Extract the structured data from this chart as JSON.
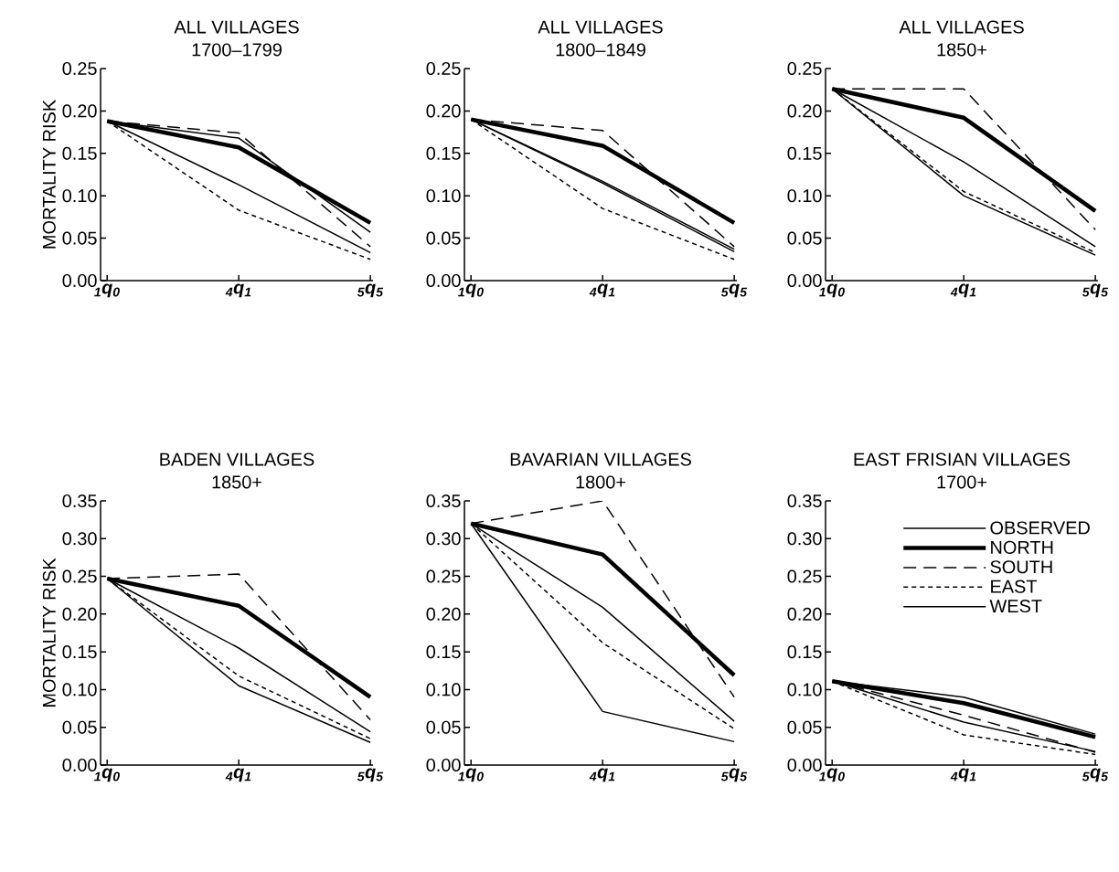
{
  "chart_data": [
    {
      "type": "line",
      "title": "ALL VILLAGES",
      "subtitle": "1700–1799",
      "ylabel": "MORTALITY RISK",
      "categories": [
        "$_{1}$q$_{0}$",
        "$_{4}$q$_{1}$",
        "$_{5}$q$_{5}$"
      ],
      "ylim": [
        0,
        0.25
      ],
      "yticks": [
        {
          "value": 0,
          "label": "0.00"
        },
        {
          "value": 0.05,
          "label": "0.05"
        },
        {
          "value": 0.1,
          "label": "0.10"
        },
        {
          "value": 0.15,
          "label": "0.15"
        },
        {
          "value": 0.2,
          "label": "0.20"
        },
        {
          "value": 0.25,
          "label": "0.25"
        }
      ],
      "series": [
        {
          "color": "#000000",
          "line_style": "solid",
          "values": [
            0.188,
            0.168,
            0.057
          ]
        },
        {
          "color": "#000000",
          "line_style": "solid",
          "values": [
            0.188,
            0.157,
            0.068
          ]
        },
        {
          "color": "#000000",
          "line_style": "dashed",
          "values": [
            0.188,
            0.174,
            0.04
          ]
        },
        {
          "color": "#000000",
          "line_style": "dotted",
          "values": [
            0.188,
            0.083,
            0.025
          ]
        },
        {
          "color": "#000000",
          "line_style": "solid",
          "values": [
            0.188,
            0.113,
            0.033
          ]
        }
      ]
    },
    {
      "type": "line",
      "title": "ALL VILLAGES",
      "subtitle": "1800–1849",
      "categories": [
        "$_{1}$q$_{0}$",
        "$_{4}$q$_{1}$",
        "$_{5}$q$_{5}$"
      ],
      "ylim": [
        0,
        0.25
      ],
      "yticks": [
        {
          "value": 0,
          "label": "0.00"
        },
        {
          "value": 0.05,
          "label": "0.05"
        },
        {
          "value": 0.1,
          "label": "0.10"
        },
        {
          "value": 0.15,
          "label": "0.15"
        },
        {
          "value": 0.2,
          "label": "0.20"
        },
        {
          "value": 0.25,
          "label": "0.25"
        }
      ],
      "series": [
        {
          "color": "#000000",
          "line_style": "solid",
          "values": [
            0.19,
            0.115,
            0.034
          ]
        },
        {
          "color": "#000000",
          "line_style": "solid",
          "values": [
            0.19,
            0.159,
            0.068
          ]
        },
        {
          "color": "#000000",
          "line_style": "dashed",
          "values": [
            0.19,
            0.177,
            0.04
          ]
        },
        {
          "color": "#000000",
          "line_style": "dotted",
          "values": [
            0.19,
            0.085,
            0.025
          ]
        },
        {
          "color": "#000000",
          "line_style": "solid",
          "values": [
            0.19,
            0.117,
            0.037
          ]
        }
      ]
    },
    {
      "type": "line",
      "title": "ALL VILLAGES",
      "subtitle": "1850+",
      "categories": [
        "$_{1}$q$_{0}$",
        "$_{4}$q$_{1}$",
        "$_{5}$q$_{5}$"
      ],
      "ylim": [
        0,
        0.25
      ],
      "yticks": [
        {
          "value": 0,
          "label": "0.00"
        },
        {
          "value": 0.05,
          "label": "0.05"
        },
        {
          "value": 0.1,
          "label": "0.10"
        },
        {
          "value": 0.15,
          "label": "0.15"
        },
        {
          "value": 0.2,
          "label": "0.20"
        },
        {
          "value": 0.25,
          "label": "0.25"
        }
      ],
      "series": [
        {
          "color": "#000000",
          "line_style": "solid",
          "values": [
            0.226,
            0.1,
            0.03
          ]
        },
        {
          "color": "#000000",
          "line_style": "solid",
          "values": [
            0.226,
            0.192,
            0.082
          ]
        },
        {
          "color": "#000000",
          "line_style": "dashed",
          "values": [
            0.226,
            0.226,
            0.06
          ]
        },
        {
          "color": "#000000",
          "line_style": "dotted",
          "values": [
            0.226,
            0.105,
            0.033
          ]
        },
        {
          "color": "#000000",
          "line_style": "solid",
          "values": [
            0.226,
            0.14,
            0.04
          ]
        }
      ]
    },
    {
      "type": "line",
      "title": "BADEN VILLAGES",
      "subtitle": "1850+",
      "ylabel": "MORTALITY RISK",
      "categories": [
        "$_{1}$q$_{0}$",
        "$_{4}$q$_{1}$",
        "$_{5}$q$_{5}$"
      ],
      "ylim": [
        0,
        0.35
      ],
      "yticks": [
        {
          "value": 0,
          "label": "0.00"
        },
        {
          "value": 0.05,
          "label": "0.05"
        },
        {
          "value": 0.1,
          "label": "0.10"
        },
        {
          "value": 0.15,
          "label": "0.15"
        },
        {
          "value": 0.2,
          "label": "0.20"
        },
        {
          "value": 0.25,
          "label": "0.25"
        },
        {
          "value": 0.3,
          "label": "0.30"
        },
        {
          "value": 0.35,
          "label": "0.35"
        }
      ],
      "series": [
        {
          "color": "#000000",
          "line_style": "solid",
          "values": [
            0.247,
            0.105,
            0.03
          ]
        },
        {
          "color": "#000000",
          "line_style": "solid",
          "values": [
            0.247,
            0.211,
            0.09
          ]
        },
        {
          "color": "#000000",
          "line_style": "dashed",
          "values": [
            0.247,
            0.253,
            0.06
          ]
        },
        {
          "color": "#000000",
          "line_style": "dotted",
          "values": [
            0.247,
            0.118,
            0.035
          ]
        },
        {
          "color": "#000000",
          "line_style": "solid",
          "values": [
            0.247,
            0.155,
            0.044
          ]
        }
      ]
    },
    {
      "type": "line",
      "title": "BAVARIAN VILLAGES",
      "subtitle": "1800+",
      "categories": [
        "$_{1}$q$_{0}$",
        "$_{4}$q$_{1}$",
        "$_{5}$q$_{5}$"
      ],
      "ylim": [
        0,
        0.35
      ],
      "yticks": [
        {
          "value": 0,
          "label": "0.00"
        },
        {
          "value": 0.05,
          "label": "0.05"
        },
        {
          "value": 0.1,
          "label": "0.10"
        },
        {
          "value": 0.15,
          "label": "0.15"
        },
        {
          "value": 0.2,
          "label": "0.20"
        },
        {
          "value": 0.25,
          "label": "0.25"
        },
        {
          "value": 0.3,
          "label": "0.30"
        },
        {
          "value": 0.35,
          "label": "0.35"
        }
      ],
      "series": [
        {
          "color": "#000000",
          "line_style": "solid",
          "values": [
            0.32,
            0.071,
            0.031
          ]
        },
        {
          "color": "#000000",
          "line_style": "solid",
          "values": [
            0.32,
            0.279,
            0.119
          ]
        },
        {
          "color": "#000000",
          "line_style": "dashed",
          "values": [
            0.32,
            0.35,
            0.09
          ]
        },
        {
          "color": "#000000",
          "line_style": "dotted",
          "values": [
            0.32,
            0.162,
            0.048
          ]
        },
        {
          "color": "#000000",
          "line_style": "solid",
          "values": [
            0.32,
            0.209,
            0.058
          ]
        }
      ]
    },
    {
      "type": "line",
      "title": "EAST FRISIAN VILLAGES",
      "subtitle": "1700+",
      "categories": [
        "$_{1}$q$_{0}$",
        "$_{4}$q$_{1}$",
        "$_{5}$q$_{5}$"
      ],
      "ylim": [
        0,
        0.35
      ],
      "yticks": [
        {
          "value": 0,
          "label": "0.00"
        },
        {
          "value": 0.05,
          "label": "0.05"
        },
        {
          "value": 0.1,
          "label": "0.10"
        },
        {
          "value": 0.15,
          "label": "0.15"
        },
        {
          "value": 0.2,
          "label": "0.20"
        },
        {
          "value": 0.25,
          "label": "0.25"
        },
        {
          "value": 0.3,
          "label": "0.30"
        },
        {
          "value": 0.35,
          "label": "0.35"
        }
      ],
      "legend": "top right",
      "series": [
        {
          "name": "OBSERVED",
          "color": "#000000",
          "line_style": "solid",
          "values": [
            0.111,
            0.09,
            0.041
          ]
        },
        {
          "name": "NORTH",
          "color": "#000000",
          "line_style": "solid",
          "values": [
            0.111,
            0.082,
            0.037
          ]
        },
        {
          "name": "SOUTH",
          "color": "#000000",
          "line_style": "dashed",
          "values": [
            0.111,
            0.066,
            0.017
          ]
        },
        {
          "name": "EAST",
          "color": "#000000",
          "line_style": "dotted",
          "values": [
            0.111,
            0.04,
            0.014
          ]
        },
        {
          "name": "WEST",
          "color": "#000000",
          "line_style": "solid",
          "values": [
            0.111,
            0.057,
            0.018
          ]
        }
      ]
    }
  ]
}
